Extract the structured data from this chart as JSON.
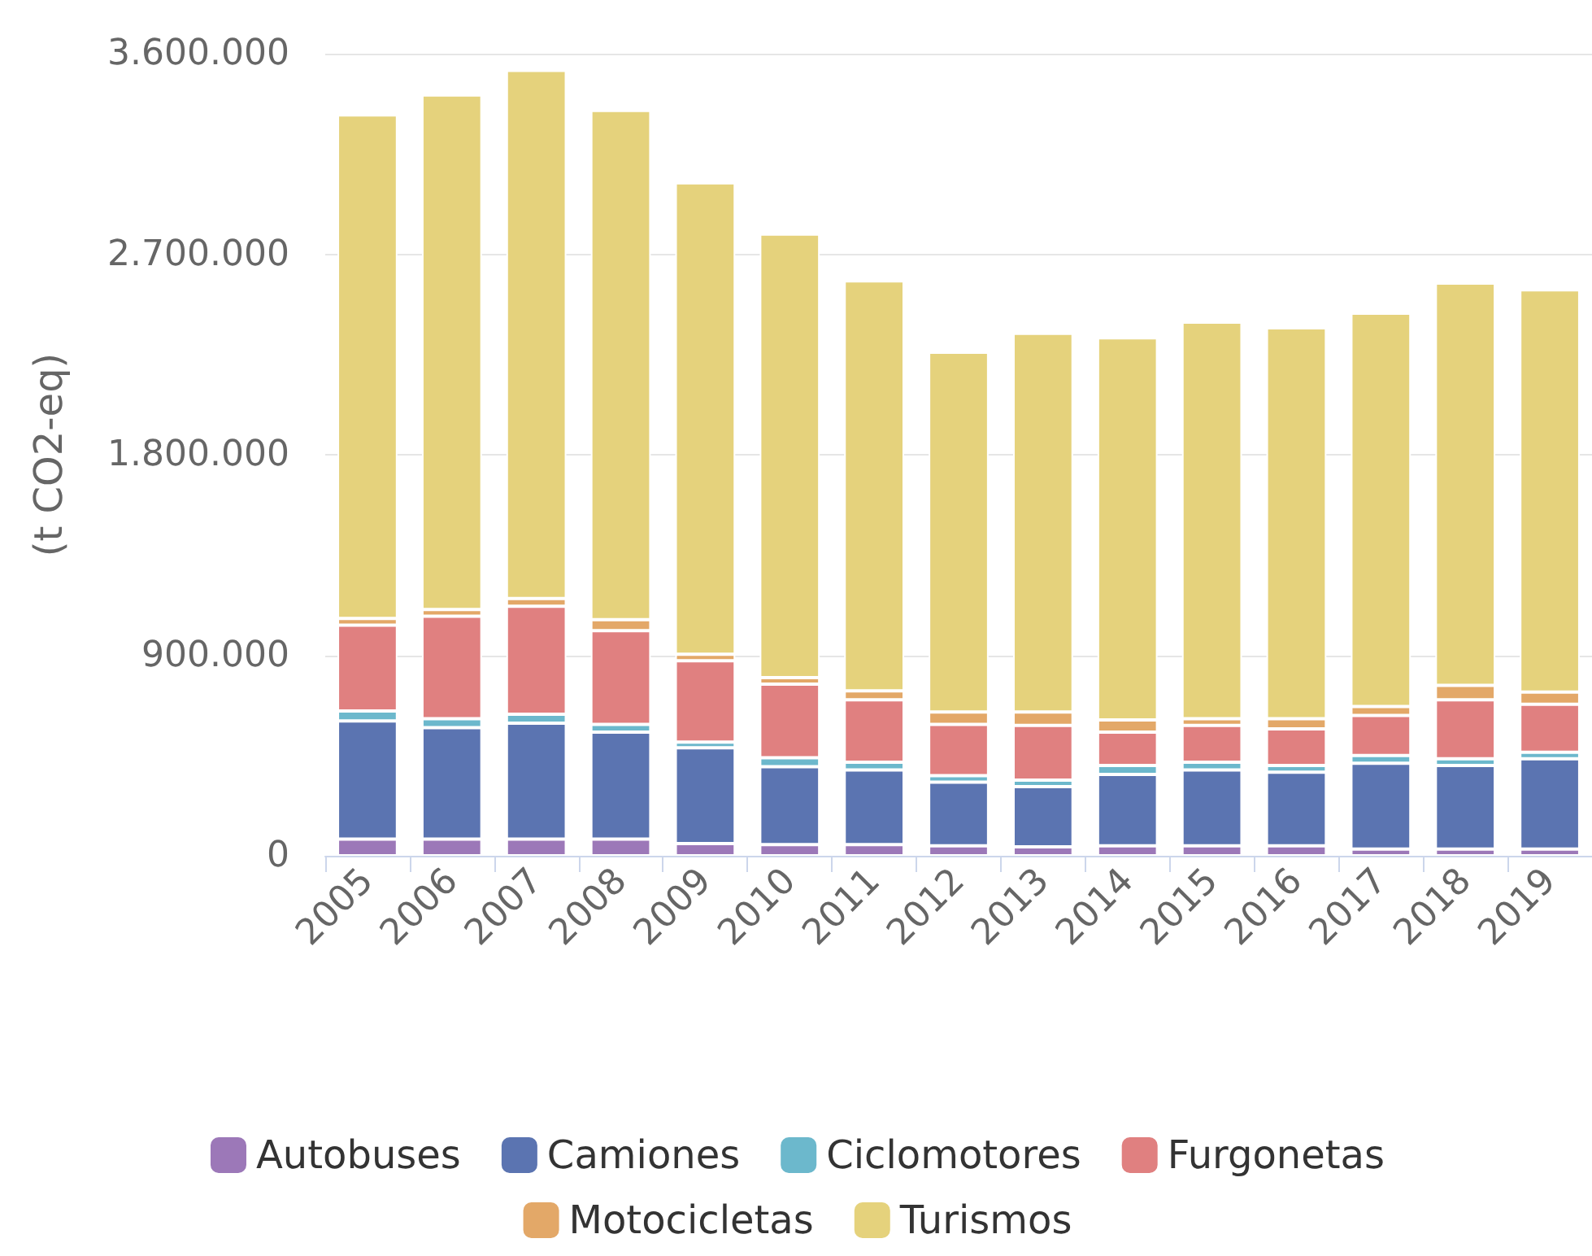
{
  "chart_data": {
    "type": "bar",
    "ylabel": "(t CO2-eq)",
    "categories": [
      "2005",
      "2006",
      "2007",
      "2008",
      "2009",
      "2010",
      "2011",
      "2012",
      "2013",
      "2014",
      "2015",
      "2016",
      "2017",
      "2018",
      "2019"
    ],
    "stacked": true,
    "series": [
      {
        "name": "Autobuses",
        "color": "#9c78b8",
        "values": [
          75000,
          75000,
          75000,
          75000,
          55000,
          50000,
          50000,
          45000,
          40000,
          45000,
          45000,
          45000,
          30000,
          30000,
          30000
        ]
      },
      {
        "name": "Camiones",
        "color": "#5b74b1",
        "values": [
          530000,
          500000,
          520000,
          480000,
          430000,
          350000,
          335000,
          285000,
          270000,
          320000,
          340000,
          330000,
          385000,
          375000,
          405000
        ]
      },
      {
        "name": "Ciclomotores",
        "color": "#6cb8cc",
        "values": [
          45000,
          40000,
          40000,
          35000,
          25000,
          40000,
          35000,
          30000,
          30000,
          40000,
          35000,
          30000,
          35000,
          30000,
          30000
        ]
      },
      {
        "name": "Furgonetas",
        "color": "#e08080",
        "values": [
          385000,
          460000,
          485000,
          420000,
          365000,
          330000,
          280000,
          230000,
          245000,
          150000,
          165000,
          165000,
          180000,
          265000,
          215000
        ]
      },
      {
        "name": "Motocicletas",
        "color": "#e3a868",
        "values": [
          30000,
          30000,
          35000,
          50000,
          30000,
          30000,
          40000,
          55000,
          60000,
          55000,
          30000,
          45000,
          40000,
          65000,
          55000
        ]
      },
      {
        "name": "Turismos",
        "color": "#e5d27c",
        "values": [
          2260000,
          2310000,
          2370000,
          2285000,
          2115000,
          1990000,
          1840000,
          1615000,
          1700000,
          1715000,
          1780000,
          1755000,
          1765000,
          1805000,
          1805000
        ]
      }
    ],
    "ylim": [
      0,
      3600000
    ],
    "yticks": [
      0,
      {
        "value": 900000,
        "label": "900.000"
      },
      {
        "value": 1800000,
        "label": "1.800.000"
      },
      {
        "value": 2700000,
        "label": "2.700.000"
      },
      {
        "value": 3600000,
        "label": "3.600.000"
      }
    ],
    "grid": "y",
    "legend": "bottom"
  }
}
